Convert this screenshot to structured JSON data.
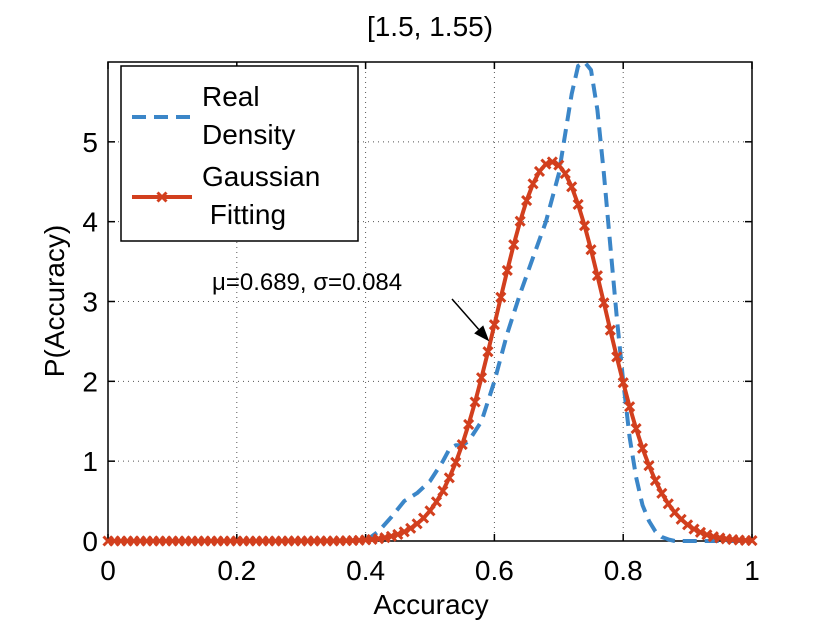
{
  "chart_data": {
    "type": "line",
    "title": "[1.5, 1.55)",
    "xlabel": "Accuracy",
    "ylabel": "P(Accuracy)",
    "xlim": [
      0,
      1
    ],
    "ylim": [
      0,
      6
    ],
    "x_ticks": [
      0,
      0.2,
      0.4,
      0.6,
      0.8,
      1
    ],
    "x_tick_labels": [
      "0",
      "0.2",
      "0.4",
      "0.6",
      "0.8",
      "1"
    ],
    "y_ticks": [
      0,
      1,
      2,
      3,
      4,
      5
    ],
    "y_tick_labels": [
      "0",
      "1",
      "2",
      "3",
      "4",
      "5"
    ],
    "grid": true,
    "legend_position": "top-left",
    "series": [
      {
        "name": "Real Density",
        "legend_lines": [
          "Real",
          "Density"
        ],
        "style": "dashed",
        "color": "#3b86c8",
        "x": [
          0.4,
          0.42,
          0.44,
          0.46,
          0.47,
          0.48,
          0.5,
          0.52,
          0.53,
          0.54,
          0.55,
          0.56,
          0.58,
          0.6,
          0.62,
          0.64,
          0.66,
          0.68,
          0.7,
          0.71,
          0.72,
          0.73,
          0.74,
          0.75,
          0.76,
          0.77,
          0.78,
          0.79,
          0.8,
          0.81,
          0.82,
          0.83,
          0.84,
          0.85,
          0.86,
          0.87,
          0.88,
          0.9,
          0.95,
          1.0
        ],
        "y": [
          0.0,
          0.12,
          0.3,
          0.5,
          0.55,
          0.6,
          0.75,
          1.0,
          1.15,
          1.2,
          1.2,
          1.25,
          1.5,
          2.0,
          2.6,
          3.1,
          3.55,
          4.0,
          4.6,
          5.1,
          5.6,
          5.95,
          6.0,
          5.9,
          5.4,
          4.6,
          3.7,
          2.8,
          2.0,
          1.3,
          0.8,
          0.45,
          0.25,
          0.12,
          0.05,
          0.02,
          0.0,
          0.0,
          0.0,
          0.0
        ]
      },
      {
        "name": "Gaussian Fitting",
        "legend_lines": [
          "Gaussian",
          " Fitting"
        ],
        "style": "solid-markers",
        "color": "#d23f1e",
        "mu": 0.689,
        "sigma": 0.084,
        "x_start": 0,
        "x_end": 1,
        "x_step": 0.01
      }
    ],
    "annotation": {
      "text": "μ=0.689, σ=0.084",
      "arrow_to_x": 0.592,
      "arrow_to_y": 2.5
    }
  }
}
